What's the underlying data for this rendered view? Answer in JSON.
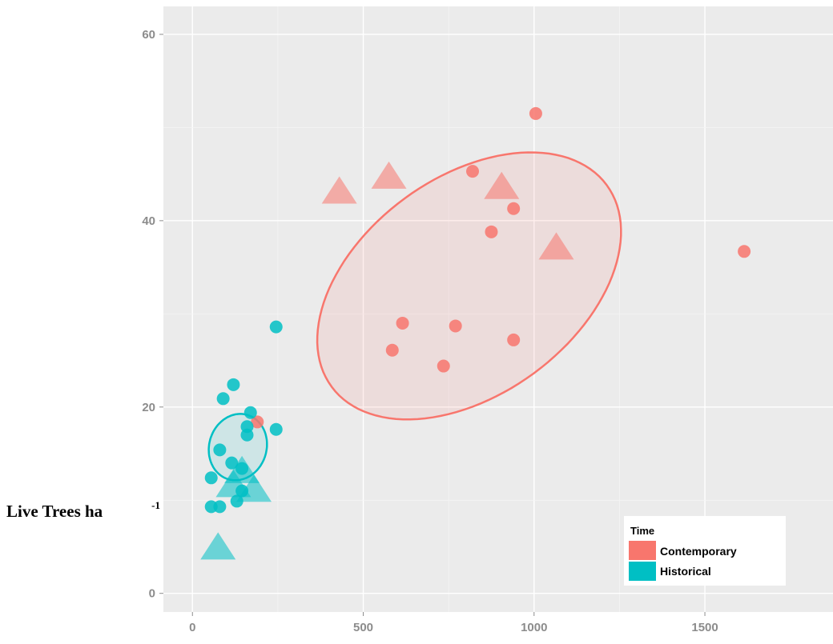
{
  "chart_data": {
    "type": "scatter",
    "title": "",
    "xlabel": "",
    "ylabel": "Live Trees ha",
    "ylabel_superscript": "-1",
    "xlim": [
      -85,
      1875
    ],
    "ylim": [
      -2,
      63
    ],
    "xticks": [
      0,
      500,
      1000,
      1500
    ],
    "xtick_labels": [
      "0",
      "500",
      "1000",
      "1500"
    ],
    "yticks": [
      0,
      20,
      40,
      60
    ],
    "ytick_labels": [
      "0",
      "20",
      "40",
      "60"
    ],
    "grid": true,
    "legend": {
      "title": "Time",
      "position": "bottom-right",
      "entries": [
        {
          "name": "Contemporary",
          "color": "#F8766D"
        },
        {
          "name": "Historical",
          "color": "#00BFC4"
        }
      ]
    },
    "series": [
      {
        "name": "Contemporary",
        "color": "#F8766D",
        "points": [
          {
            "x": 1005,
            "y": 51.5,
            "shape": "circle"
          },
          {
            "x": 820,
            "y": 45.3,
            "shape": "circle"
          },
          {
            "x": 940,
            "y": 41.3,
            "shape": "circle"
          },
          {
            "x": 875,
            "y": 38.8,
            "shape": "circle"
          },
          {
            "x": 1615,
            "y": 36.7,
            "shape": "circle"
          },
          {
            "x": 615,
            "y": 29.0,
            "shape": "circle"
          },
          {
            "x": 770,
            "y": 28.7,
            "shape": "circle"
          },
          {
            "x": 940,
            "y": 27.2,
            "shape": "circle"
          },
          {
            "x": 585,
            "y": 26.1,
            "shape": "circle"
          },
          {
            "x": 735,
            "y": 24.4,
            "shape": "circle"
          },
          {
            "x": 190,
            "y": 18.4,
            "shape": "circle"
          },
          {
            "x": 430,
            "y": 43.0,
            "shape": "triangle"
          },
          {
            "x": 575,
            "y": 44.6,
            "shape": "triangle"
          },
          {
            "x": 905,
            "y": 43.5,
            "shape": "triangle"
          },
          {
            "x": 1065,
            "y": 37.0,
            "shape": "triangle"
          }
        ],
        "ellipse": {
          "cx": 810,
          "cy": 33,
          "rx": 520,
          "ry": 11.2,
          "angle_deg": 43
        }
      },
      {
        "name": "Historical",
        "color": "#00BFC4",
        "points": [
          {
            "x": 245,
            "y": 28.6,
            "shape": "circle"
          },
          {
            "x": 120,
            "y": 22.4,
            "shape": "circle"
          },
          {
            "x": 90,
            "y": 20.9,
            "shape": "circle"
          },
          {
            "x": 170,
            "y": 19.4,
            "shape": "circle"
          },
          {
            "x": 160,
            "y": 17.9,
            "shape": "circle"
          },
          {
            "x": 245,
            "y": 17.6,
            "shape": "circle"
          },
          {
            "x": 160,
            "y": 17.0,
            "shape": "circle"
          },
          {
            "x": 80,
            "y": 15.4,
            "shape": "circle"
          },
          {
            "x": 115,
            "y": 14.0,
            "shape": "circle"
          },
          {
            "x": 145,
            "y": 13.4,
            "shape": "circle"
          },
          {
            "x": 55,
            "y": 12.4,
            "shape": "circle"
          },
          {
            "x": 145,
            "y": 11.0,
            "shape": "circle"
          },
          {
            "x": 130,
            "y": 9.9,
            "shape": "circle"
          },
          {
            "x": 55,
            "y": 9.3,
            "shape": "circle"
          },
          {
            "x": 80,
            "y": 9.3,
            "shape": "circle"
          },
          {
            "x": 145,
            "y": 13.0,
            "shape": "triangle"
          },
          {
            "x": 120,
            "y": 11.5,
            "shape": "triangle"
          },
          {
            "x": 180,
            "y": 11.0,
            "shape": "triangle"
          },
          {
            "x": 75,
            "y": 4.8,
            "shape": "triangle"
          }
        ],
        "ellipse": {
          "cx": 133,
          "cy": 15.7,
          "rx": 108,
          "ry": 2.8,
          "angle_deg": 80
        }
      }
    ]
  }
}
